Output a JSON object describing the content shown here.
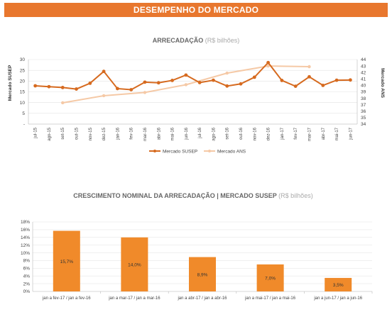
{
  "header": {
    "title": "DESEMPENHO DO MERCADO"
  },
  "colors": {
    "banner": "#e8772e",
    "susep": "#d66a1f",
    "ans": "#f5c9a6",
    "bar": "#f08a2a"
  },
  "chart_data": [
    {
      "type": "line",
      "title": "ARRECADAÇÃO",
      "title_unit": "(R$ bilhões)",
      "ylabel_left": "Mercado SUSEP",
      "ylabel_right": "Mercado ANS",
      "ylim_left": [
        0,
        30
      ],
      "yticks_left": [
        "-",
        "5",
        "10",
        "15",
        "20",
        "25",
        "30"
      ],
      "ylim_right": [
        34,
        44
      ],
      "yticks_right": [
        "34",
        "35",
        "36",
        "37",
        "38",
        "39",
        "40",
        "41",
        "42",
        "43",
        "44"
      ],
      "categories": [
        "jul-15",
        "ago-15",
        "set-15",
        "out-15",
        "nov-15",
        "dez-15",
        "jan-16",
        "fev-16",
        "mar-16",
        "abr-16",
        "mai-16",
        "jun-16",
        "jul-16",
        "ago-16",
        "set-16",
        "out-16",
        "nov-16",
        "dez-16",
        "jan-17",
        "fev-17",
        "mar-17",
        "abr-17",
        "mai-17",
        "jun-17"
      ],
      "series": [
        {
          "name": "Mercado SUSEP",
          "axis": "left",
          "values": [
            17.8,
            17.4,
            17.0,
            16.3,
            19.0,
            24.5,
            16.5,
            16.0,
            19.5,
            19.2,
            20.3,
            22.8,
            19.3,
            20.4,
            17.7,
            18.7,
            21.8,
            28.6,
            20.3,
            17.6,
            22.0,
            18.0,
            20.4,
            20.5
          ]
        },
        {
          "name": "Mercado ANS",
          "axis": "right",
          "points": [
            [
              2,
              37.3
            ],
            [
              5,
              38.4
            ],
            [
              8,
              38.9
            ],
            [
              11,
              40.1
            ],
            [
              14,
              41.9
            ],
            [
              17,
              43.0
            ],
            [
              20,
              42.9
            ]
          ]
        }
      ],
      "legend": "bottom"
    },
    {
      "type": "bar",
      "title": "CRESCIMENTO NOMINAL DA ARRECADAÇÃO | MERCADO SUSEP",
      "title_unit": "(R$ bilhões)",
      "ylim": [
        0,
        18
      ],
      "yticks": [
        "0%",
        "2%",
        "4%",
        "6%",
        "8%",
        "10%",
        "12%",
        "14%",
        "16%",
        "18%"
      ],
      "categories": [
        "jan a fev-17 / jan a fev-16",
        "jan a mar-17 / jan a mar-16",
        "jan a abr-17 / jan a abr-16",
        "jan a mai-17 / jan a mai-16",
        "jan a jun-17 / jan a jun-16"
      ],
      "values": [
        15.7,
        14.0,
        8.9,
        7.0,
        3.5
      ],
      "labels": [
        "15,7%",
        "14,0%",
        "8,9%",
        "7,0%",
        "3,5%"
      ]
    }
  ]
}
